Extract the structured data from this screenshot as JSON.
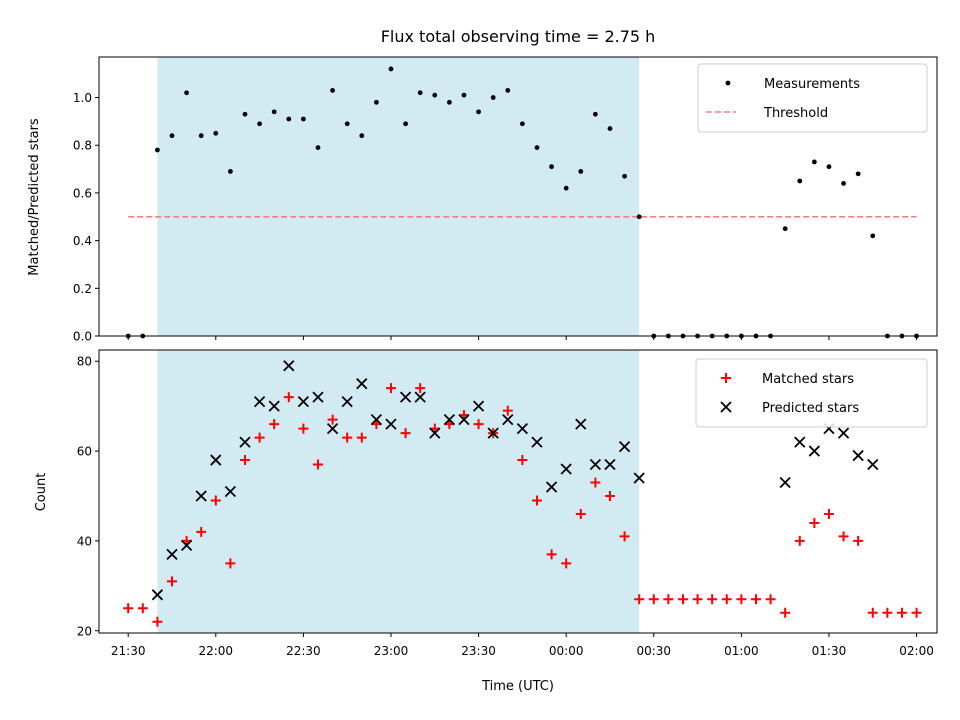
{
  "figure_title": "Flux total observing time = 2.75 h",
  "colors": {
    "shade": "#add8e6",
    "threshold": "#f08080",
    "matched": "#ff0000",
    "predicted": "#000000",
    "measurement": "#000000"
  },
  "chart_data": [
    {
      "type": "scatter",
      "ylabel": "Matched/Predicted stars",
      "xlabel": "",
      "ylim": [
        0,
        1.17
      ],
      "yticks": [
        "0.0",
        "0.2",
        "0.4",
        "0.6",
        "0.8",
        "1.0"
      ],
      "ytick_values": [
        0,
        0.2,
        0.4,
        0.6,
        0.8,
        1.0
      ],
      "shaded_interval": [
        "21:40",
        "00:25"
      ],
      "legend": {
        "position": "top-right",
        "entries": [
          "Measurements",
          "Threshold"
        ]
      },
      "threshold": {
        "name": "Threshold",
        "y": 0.5,
        "x": [
          "21:30",
          "02:00"
        ],
        "style": "dashed"
      },
      "series": [
        {
          "name": "Measurements",
          "marker": "dot",
          "points": [
            [
              "21:30",
              0
            ],
            [
              "21:35",
              0
            ],
            [
              "21:40",
              0.78
            ],
            [
              "21:45",
              0.84
            ],
            [
              "21:50",
              1.02
            ],
            [
              "21:55",
              0.84
            ],
            [
              "22:00",
              0.85
            ],
            [
              "22:05",
              0.69
            ],
            [
              "22:10",
              0.93
            ],
            [
              "22:15",
              0.89
            ],
            [
              "22:20",
              0.94
            ],
            [
              "22:25",
              0.91
            ],
            [
              "22:30",
              0.91
            ],
            [
              "22:35",
              0.79
            ],
            [
              "22:40",
              1.03
            ],
            [
              "22:45",
              0.89
            ],
            [
              "22:50",
              0.84
            ],
            [
              "22:55",
              0.98
            ],
            [
              "23:00",
              1.12
            ],
            [
              "23:05",
              0.89
            ],
            [
              "23:10",
              1.02
            ],
            [
              "23:15",
              1.01
            ],
            [
              "23:20",
              0.98
            ],
            [
              "23:25",
              1.01
            ],
            [
              "23:30",
              0.94
            ],
            [
              "23:35",
              1.0
            ],
            [
              "23:40",
              1.03
            ],
            [
              "23:45",
              0.89
            ],
            [
              "23:50",
              0.79
            ],
            [
              "23:55",
              0.71
            ],
            [
              "00:00",
              0.62
            ],
            [
              "00:05",
              0.69
            ],
            [
              "00:10",
              0.93
            ],
            [
              "00:15",
              0.87
            ],
            [
              "00:20",
              0.67
            ],
            [
              "00:25",
              0.5
            ],
            [
              "00:30",
              0
            ],
            [
              "00:35",
              0
            ],
            [
              "00:40",
              0
            ],
            [
              "00:45",
              0
            ],
            [
              "00:50",
              0
            ],
            [
              "00:55",
              0
            ],
            [
              "01:00",
              0
            ],
            [
              "01:05",
              0
            ],
            [
              "01:10",
              0
            ],
            [
              "01:15",
              0.45
            ],
            [
              "01:20",
              0.65
            ],
            [
              "01:25",
              0.73
            ],
            [
              "01:30",
              0.71
            ],
            [
              "01:35",
              0.64
            ],
            [
              "01:40",
              0.68
            ],
            [
              "01:45",
              0.42
            ],
            [
              "01:50",
              0
            ],
            [
              "01:55",
              0
            ],
            [
              "02:00",
              0
            ]
          ]
        }
      ]
    },
    {
      "type": "scatter",
      "ylabel": "Count",
      "xlabel": "Time (UTC)",
      "ylim": [
        19.5,
        82.5
      ],
      "yticks": [
        "20",
        "40",
        "60",
        "80"
      ],
      "ytick_values": [
        20,
        40,
        60,
        80
      ],
      "xlim": [
        "21:20",
        "02:07"
      ],
      "xticks": [
        "21:30",
        "22:00",
        "22:30",
        "23:00",
        "23:30",
        "00:00",
        "00:30",
        "01:00",
        "01:30",
        "02:00"
      ],
      "shaded_interval": [
        "21:40",
        "00:25"
      ],
      "legend": {
        "position": "top-right",
        "entries": [
          "Matched stars",
          "Predicted stars"
        ]
      },
      "series": [
        {
          "name": "Matched stars",
          "marker": "plus",
          "points": [
            [
              "21:30",
              25
            ],
            [
              "21:35",
              25
            ],
            [
              "21:40",
              22
            ],
            [
              "21:45",
              31
            ],
            [
              "21:50",
              40
            ],
            [
              "21:55",
              42
            ],
            [
              "22:00",
              49
            ],
            [
              "22:05",
              35
            ],
            [
              "22:10",
              58
            ],
            [
              "22:15",
              63
            ],
            [
              "22:20",
              66
            ],
            [
              "22:25",
              72
            ],
            [
              "22:30",
              65
            ],
            [
              "22:35",
              57
            ],
            [
              "22:40",
              67
            ],
            [
              "22:45",
              63
            ],
            [
              "22:50",
              63
            ],
            [
              "22:55",
              66
            ],
            [
              "23:00",
              74
            ],
            [
              "23:05",
              64
            ],
            [
              "23:10",
              74
            ],
            [
              "23:15",
              65
            ],
            [
              "23:20",
              66
            ],
            [
              "23:25",
              68
            ],
            [
              "23:30",
              66
            ],
            [
              "23:35",
              64
            ],
            [
              "23:40",
              69
            ],
            [
              "23:45",
              58
            ],
            [
              "23:50",
              49
            ],
            [
              "23:55",
              37
            ],
            [
              "00:00",
              35
            ],
            [
              "00:05",
              46
            ],
            [
              "00:10",
              53
            ],
            [
              "00:15",
              50
            ],
            [
              "00:20",
              41
            ],
            [
              "00:25",
              27
            ],
            [
              "00:30",
              27
            ],
            [
              "00:35",
              27
            ],
            [
              "00:40",
              27
            ],
            [
              "00:45",
              27
            ],
            [
              "00:50",
              27
            ],
            [
              "00:55",
              27
            ],
            [
              "01:00",
              27
            ],
            [
              "01:05",
              27
            ],
            [
              "01:10",
              27
            ],
            [
              "01:15",
              24
            ],
            [
              "01:20",
              40
            ],
            [
              "01:25",
              44
            ],
            [
              "01:30",
              46
            ],
            [
              "01:35",
              41
            ],
            [
              "01:40",
              40
            ],
            [
              "01:45",
              24
            ],
            [
              "01:50",
              24
            ],
            [
              "01:55",
              24
            ],
            [
              "02:00",
              24
            ]
          ]
        },
        {
          "name": "Predicted stars",
          "marker": "x",
          "points": [
            [
              "21:40",
              28
            ],
            [
              "21:45",
              37
            ],
            [
              "21:50",
              39
            ],
            [
              "21:55",
              50
            ],
            [
              "22:00",
              58
            ],
            [
              "22:05",
              51
            ],
            [
              "22:10",
              62
            ],
            [
              "22:15",
              71
            ],
            [
              "22:20",
              70
            ],
            [
              "22:25",
              79
            ],
            [
              "22:30",
              71
            ],
            [
              "22:35",
              72
            ],
            [
              "22:40",
              65
            ],
            [
              "22:45",
              71
            ],
            [
              "22:50",
              75
            ],
            [
              "22:55",
              67
            ],
            [
              "23:00",
              66
            ],
            [
              "23:05",
              72
            ],
            [
              "23:10",
              72
            ],
            [
              "23:15",
              64
            ],
            [
              "23:20",
              67
            ],
            [
              "23:25",
              67
            ],
            [
              "23:30",
              70
            ],
            [
              "23:35",
              64
            ],
            [
              "23:40",
              67
            ],
            [
              "23:45",
              65
            ],
            [
              "23:50",
              62
            ],
            [
              "23:55",
              52
            ],
            [
              "00:00",
              56
            ],
            [
              "00:05",
              66
            ],
            [
              "00:10",
              57
            ],
            [
              "00:15",
              57
            ],
            [
              "00:20",
              61
            ],
            [
              "00:25",
              54
            ],
            [
              "01:15",
              53
            ],
            [
              "01:20",
              62
            ],
            [
              "01:25",
              60
            ],
            [
              "01:30",
              65
            ],
            [
              "01:35",
              64
            ],
            [
              "01:40",
              59
            ],
            [
              "01:45",
              57
            ]
          ]
        }
      ]
    }
  ]
}
